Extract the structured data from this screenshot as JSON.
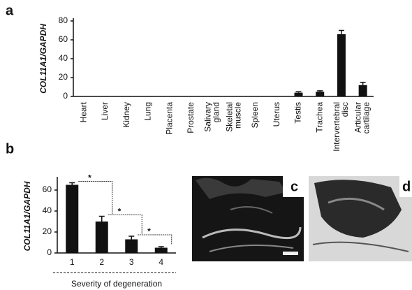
{
  "figure": {
    "panel_labels": [
      "a",
      "b",
      "c",
      "d"
    ]
  },
  "chart_data": [
    {
      "type": "bar",
      "y_label": "COL11A1/GAPDH",
      "categories": [
        "Heart",
        "Liver",
        "Kidney",
        "Lung",
        "Placenta",
        "Prostate",
        "Salivary gland",
        "Skeletal muscle",
        "Spleen",
        "Uterus",
        "Testis",
        "Trachea",
        "Intervertebral disc",
        "Articular cartilage"
      ],
      "values": [
        0,
        0,
        0,
        0,
        0,
        0,
        0,
        0,
        0,
        0,
        4,
        5,
        66,
        12
      ],
      "errors": [
        0,
        0,
        0,
        0,
        0,
        0,
        0,
        0,
        0,
        0,
        1,
        1,
        4,
        3
      ],
      "color": "#111111",
      "ylim": [
        0,
        80
      ],
      "yticks": [
        0,
        20,
        40,
        60,
        80
      ]
    },
    {
      "type": "bar",
      "y_label": "COL11A1/GAPDH",
      "x_label": "Severity of degeneration",
      "categories": [
        "1",
        "2",
        "3",
        "4"
      ],
      "values": [
        65,
        30,
        13,
        5
      ],
      "errors": [
        2,
        5,
        3,
        1
      ],
      "color": "#111111",
      "ylim": [
        0,
        70
      ],
      "yticks": [
        0,
        20,
        40,
        60
      ],
      "annotations": [
        "*",
        "*",
        "*"
      ]
    }
  ]
}
